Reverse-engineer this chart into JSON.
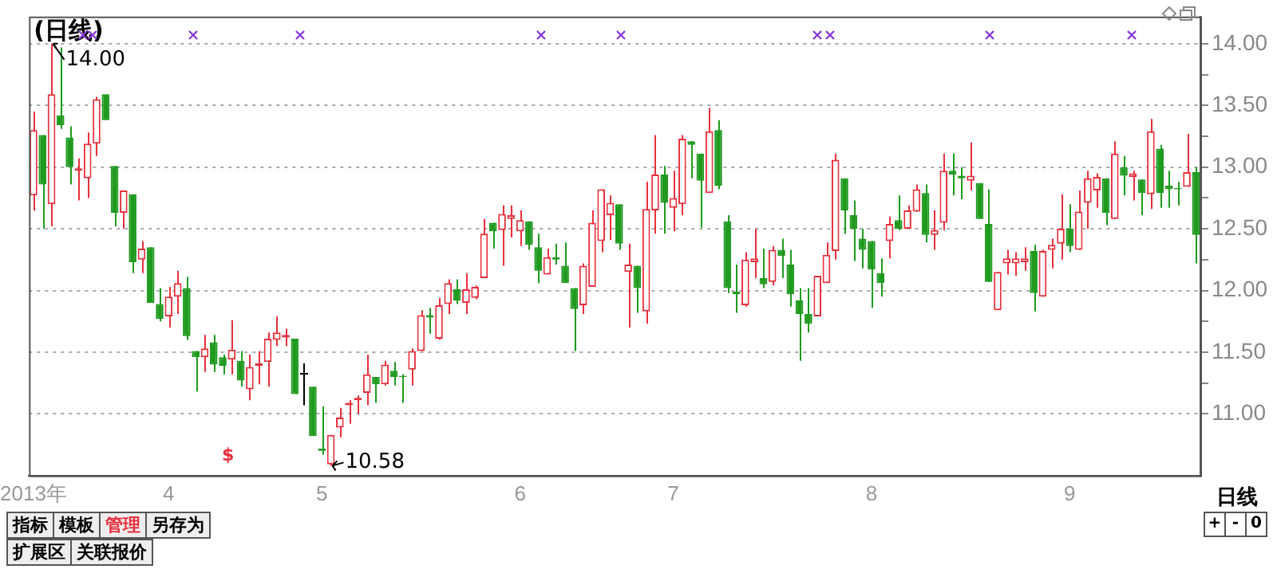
{
  "chart_data": {
    "type": "candlestick",
    "title": "(日线)",
    "categories": [
      "2013年",
      null,
      null,
      null,
      null,
      null,
      null,
      null,
      null,
      null,
      null,
      null,
      null,
      null,
      null,
      "4",
      null,
      null,
      null,
      null,
      null,
      null,
      null,
      null,
      null,
      null,
      null,
      null,
      null,
      null,
      null,
      null,
      "5",
      null,
      null,
      null,
      null,
      null,
      null,
      null,
      null,
      null,
      null,
      null,
      null,
      null,
      null,
      null,
      null,
      null,
      null,
      null,
      null,
      null,
      "6",
      null,
      null,
      null,
      null,
      null,
      null,
      null,
      null,
      null,
      null,
      null,
      null,
      null,
      null,
      null,
      null,
      "7",
      null,
      null,
      null,
      null,
      null,
      null,
      null,
      null,
      null,
      null,
      null,
      null,
      null,
      null,
      null,
      null,
      null,
      null,
      null,
      null,
      null,
      "8",
      null,
      null,
      null,
      null,
      null,
      null,
      null,
      null,
      null,
      null,
      null,
      null,
      null,
      null,
      null,
      null,
      null,
      null,
      null,
      null,
      null,
      "9",
      null,
      null,
      null,
      null,
      null,
      null,
      null,
      null,
      null,
      null,
      null,
      null,
      null,
      null
    ],
    "ohlc": [
      [
        12.77,
        13.45,
        12.65,
        13.3
      ],
      [
        13.26,
        13.26,
        12.5,
        12.86
      ],
      [
        12.7,
        14.0,
        12.52,
        13.59
      ],
      [
        13.42,
        13.97,
        13.31,
        13.34
      ],
      [
        13.24,
        13.33,
        12.86,
        13.0
      ],
      [
        12.97,
        13.07,
        12.73,
        12.99
      ],
      [
        12.91,
        13.28,
        12.75,
        13.19
      ],
      [
        13.19,
        13.57,
        13.09,
        13.55
      ],
      [
        13.59,
        13.59,
        13.38,
        13.38
      ],
      [
        13.01,
        13.01,
        12.52,
        12.63
      ],
      [
        12.63,
        12.81,
        12.5,
        12.81
      ],
      [
        12.78,
        12.78,
        12.14,
        12.23
      ],
      [
        12.25,
        12.4,
        12.14,
        12.34
      ],
      [
        12.35,
        12.35,
        11.9,
        11.9
      ],
      [
        11.89,
        12.02,
        11.75,
        11.77
      ],
      [
        11.79,
        12.03,
        11.7,
        11.95
      ],
      [
        11.95,
        12.16,
        11.81,
        12.06
      ],
      [
        12.02,
        12.11,
        11.6,
        11.63
      ],
      [
        11.51,
        11.51,
        11.18,
        11.46
      ],
      [
        11.46,
        11.64,
        11.34,
        11.53
      ],
      [
        11.58,
        11.64,
        11.34,
        11.4
      ],
      [
        11.46,
        11.48,
        11.32,
        11.39
      ],
      [
        11.44,
        11.76,
        11.32,
        11.52
      ],
      [
        11.43,
        11.51,
        11.22,
        11.27
      ],
      [
        11.2,
        11.48,
        11.11,
        11.38
      ],
      [
        11.39,
        11.51,
        11.24,
        11.41
      ],
      [
        11.42,
        11.66,
        11.22,
        11.61
      ],
      [
        11.6,
        11.79,
        11.55,
        11.66
      ],
      [
        11.62,
        11.69,
        11.55,
        11.64
      ],
      [
        11.61,
        11.61,
        11.16,
        11.16
      ],
      [
        11.33,
        11.41,
        11.07,
        11.33
      ],
      [
        11.22,
        11.22,
        10.82,
        10.82
      ],
      [
        10.72,
        11.06,
        10.67,
        10.7
      ],
      [
        10.59,
        10.83,
        10.58,
        10.83
      ],
      [
        10.89,
        11.05,
        10.81,
        10.97
      ],
      [
        11.07,
        11.11,
        10.92,
        11.09
      ],
      [
        11.11,
        11.15,
        11.0,
        11.13
      ],
      [
        11.17,
        11.48,
        11.07,
        11.32
      ],
      [
        11.3,
        11.3,
        11.09,
        11.24
      ],
      [
        11.24,
        11.43,
        11.23,
        11.4
      ],
      [
        11.35,
        11.42,
        11.23,
        11.3
      ],
      [
        11.31,
        11.32,
        11.09,
        11.3
      ],
      [
        11.36,
        11.53,
        11.23,
        11.51
      ],
      [
        11.51,
        11.84,
        11.51,
        11.8
      ],
      [
        11.8,
        11.86,
        11.65,
        11.78
      ],
      [
        11.61,
        11.94,
        11.6,
        11.88
      ],
      [
        11.89,
        12.09,
        11.81,
        12.06
      ],
      [
        12.01,
        12.09,
        11.89,
        11.92
      ],
      [
        11.9,
        12.14,
        11.81,
        12.01
      ],
      [
        11.94,
        12.04,
        11.93,
        12.03
      ],
      [
        12.1,
        12.58,
        12.1,
        12.46
      ],
      [
        12.55,
        12.55,
        12.34,
        12.48
      ],
      [
        12.49,
        12.69,
        12.2,
        12.62
      ],
      [
        12.58,
        12.69,
        12.43,
        12.61
      ],
      [
        12.48,
        12.65,
        12.36,
        12.57
      ],
      [
        12.56,
        12.56,
        12.33,
        12.37
      ],
      [
        12.35,
        12.46,
        12.06,
        12.16
      ],
      [
        12.13,
        12.34,
        12.13,
        12.27
      ],
      [
        12.27,
        12.38,
        12.21,
        12.25
      ],
      [
        12.2,
        12.39,
        12.06,
        12.06
      ],
      [
        12.02,
        12.02,
        11.51,
        11.85
      ],
      [
        11.88,
        12.22,
        11.81,
        12.2
      ],
      [
        12.03,
        12.65,
        12.03,
        12.55
      ],
      [
        12.4,
        12.82,
        12.31,
        12.82
      ],
      [
        12.61,
        12.77,
        12.41,
        12.71
      ],
      [
        12.7,
        12.7,
        12.33,
        12.38
      ],
      [
        12.15,
        12.38,
        11.7,
        12.21
      ],
      [
        12.2,
        12.2,
        11.82,
        12.02
      ],
      [
        11.83,
        12.88,
        11.73,
        12.66
      ],
      [
        12.65,
        13.26,
        12.46,
        12.94
      ],
      [
        12.94,
        13.01,
        12.46,
        12.71
      ],
      [
        12.67,
        12.97,
        12.48,
        12.75
      ],
      [
        12.7,
        13.26,
        12.61,
        13.23
      ],
      [
        13.21,
        13.21,
        12.91,
        13.18
      ],
      [
        13.11,
        13.11,
        12.51,
        12.89
      ],
      [
        12.79,
        13.48,
        12.79,
        13.29
      ],
      [
        13.3,
        13.38,
        12.82,
        12.85
      ],
      [
        12.56,
        12.61,
        11.98,
        12.02
      ],
      [
        11.99,
        12.21,
        11.82,
        11.97
      ],
      [
        11.88,
        12.31,
        11.87,
        12.25
      ],
      [
        12.23,
        12.5,
        12.1,
        12.26
      ],
      [
        12.1,
        12.34,
        12.02,
        12.05
      ],
      [
        12.07,
        12.36,
        12.04,
        12.33
      ],
      [
        12.33,
        12.42,
        12.1,
        12.28
      ],
      [
        12.21,
        12.33,
        11.87,
        11.97
      ],
      [
        11.92,
        12.02,
        11.43,
        11.81
      ],
      [
        11.81,
        12.02,
        11.66,
        11.73
      ],
      [
        11.79,
        12.12,
        11.79,
        12.12
      ],
      [
        12.06,
        12.39,
        12.06,
        12.29
      ],
      [
        12.32,
        13.11,
        12.25,
        13.06
      ],
      [
        12.91,
        12.91,
        12.46,
        12.65
      ],
      [
        12.61,
        12.73,
        12.24,
        12.5
      ],
      [
        12.42,
        12.5,
        12.18,
        12.33
      ],
      [
        12.4,
        12.4,
        11.86,
        12.17
      ],
      [
        12.14,
        12.26,
        11.95,
        12.06
      ],
      [
        12.4,
        12.6,
        12.26,
        12.54
      ],
      [
        12.57,
        12.77,
        12.49,
        12.5
      ],
      [
        12.5,
        12.69,
        12.5,
        12.65
      ],
      [
        12.64,
        12.86,
        12.64,
        12.82
      ],
      [
        12.79,
        12.86,
        12.39,
        12.45
      ],
      [
        12.45,
        12.65,
        12.33,
        12.49
      ],
      [
        12.55,
        13.11,
        12.49,
        12.97
      ],
      [
        12.97,
        13.11,
        12.77,
        12.94
      ],
      [
        12.93,
        13.0,
        12.74,
        12.91
      ],
      [
        12.89,
        13.2,
        12.81,
        12.93
      ],
      [
        12.87,
        12.87,
        12.58,
        12.58
      ],
      [
        12.54,
        12.82,
        12.07,
        12.07
      ],
      [
        11.84,
        12.15,
        11.84,
        12.15
      ],
      [
        12.22,
        12.33,
        12.13,
        12.26
      ],
      [
        12.22,
        12.31,
        12.12,
        12.26
      ],
      [
        12.23,
        12.35,
        12.16,
        12.26
      ],
      [
        12.32,
        12.37,
        11.83,
        11.98
      ],
      [
        11.95,
        12.33,
        11.95,
        12.32
      ],
      [
        12.33,
        12.42,
        12.18,
        12.37
      ],
      [
        12.38,
        12.78,
        12.25,
        12.5
      ],
      [
        12.5,
        12.7,
        12.31,
        12.36
      ],
      [
        12.33,
        12.81,
        12.33,
        12.64
      ],
      [
        12.71,
        12.97,
        12.5,
        12.91
      ],
      [
        12.81,
        12.95,
        12.67,
        12.92
      ],
      [
        12.91,
        12.91,
        12.53,
        12.63
      ],
      [
        12.58,
        13.21,
        12.58,
        13.11
      ],
      [
        13.0,
        13.09,
        12.77,
        12.93
      ],
      [
        12.92,
        12.97,
        12.73,
        12.95
      ],
      [
        12.9,
        12.9,
        12.61,
        12.79
      ],
      [
        12.78,
        13.39,
        12.66,
        13.29
      ],
      [
        13.15,
        13.18,
        12.67,
        12.79
      ],
      [
        12.85,
        12.97,
        12.67,
        12.82
      ],
      [
        12.83,
        12.88,
        12.69,
        12.82
      ],
      [
        12.84,
        13.27,
        12.84,
        12.96
      ],
      [
        12.96,
        13.0,
        12.22,
        12.45
      ]
    ],
    "colors": [
      "#e8303c",
      "#1f9a1f",
      "#e8303c",
      "#1f9a1f",
      "#1f9a1f",
      "#e8303c",
      "#e8303c",
      "#e8303c",
      "#1f9a1f",
      "#1f9a1f",
      "#e8303c",
      "#1f9a1f",
      "#e8303c",
      "#1f9a1f",
      "#1f9a1f",
      "#e8303c",
      "#e8303c",
      "#1f9a1f",
      "#1f9a1f",
      "#e8303c",
      "#1f9a1f",
      "#1f9a1f",
      "#e8303c",
      "#1f9a1f",
      "#e8303c",
      "#e8303c",
      "#e8303c",
      "#e8303c",
      "#e8303c",
      "#1f9a1f",
      "#000000",
      "#1f9a1f",
      "#1f9a1f",
      "#e8303c",
      "#e8303c",
      "#e8303c",
      "#e8303c",
      "#e8303c",
      "#1f9a1f",
      "#e8303c",
      "#1f9a1f",
      "#1f9a1f",
      "#e8303c",
      "#e8303c",
      "#1f9a1f",
      "#e8303c",
      "#e8303c",
      "#1f9a1f",
      "#e8303c",
      "#e8303c",
      "#e8303c",
      "#1f9a1f",
      "#e8303c",
      "#e8303c",
      "#e8303c",
      "#1f9a1f",
      "#1f9a1f",
      "#e8303c",
      "#1f9a1f",
      "#1f9a1f",
      "#1f9a1f",
      "#e8303c",
      "#e8303c",
      "#e8303c",
      "#e8303c",
      "#1f9a1f",
      "#e8303c",
      "#1f9a1f",
      "#e8303c",
      "#e8303c",
      "#1f9a1f",
      "#e8303c",
      "#e8303c",
      "#1f9a1f",
      "#1f9a1f",
      "#e8303c",
      "#1f9a1f",
      "#1f9a1f",
      "#1f9a1f",
      "#e8303c",
      "#e8303c",
      "#1f9a1f",
      "#e8303c",
      "#1f9a1f",
      "#1f9a1f",
      "#1f9a1f",
      "#1f9a1f",
      "#e8303c",
      "#e8303c",
      "#e8303c",
      "#1f9a1f",
      "#1f9a1f",
      "#1f9a1f",
      "#1f9a1f",
      "#1f9a1f",
      "#e8303c",
      "#1f9a1f",
      "#e8303c",
      "#e8303c",
      "#1f9a1f",
      "#e8303c",
      "#e8303c",
      "#1f9a1f",
      "#1f9a1f",
      "#e8303c",
      "#1f9a1f",
      "#1f9a1f",
      "#e8303c",
      "#e8303c",
      "#e8303c",
      "#e8303c",
      "#1f9a1f",
      "#e8303c",
      "#e8303c",
      "#e8303c",
      "#1f9a1f",
      "#e8303c",
      "#e8303c",
      "#e8303c",
      "#1f9a1f",
      "#e8303c",
      "#1f9a1f",
      "#e8303c",
      "#1f9a1f",
      "#e8303c",
      "#1f9a1f",
      "#1f9a1f",
      "#1f9a1f",
      "#e8303c",
      "#1f9a1f"
    ],
    "ylim": [
      10.5,
      14.22
    ],
    "yticks": [
      {
        "value": 11,
        "label": "11.00"
      },
      {
        "value": 11.25,
        "label": null
      },
      {
        "value": 11.5,
        "label": "11.50"
      },
      {
        "value": 11.75,
        "label": null
      },
      {
        "value": 12,
        "label": "12.00"
      },
      {
        "value": 12.25,
        "label": null
      },
      {
        "value": 12.5,
        "label": "12.50"
      },
      {
        "value": 12.75,
        "label": null
      },
      {
        "value": 13,
        "label": "13.00"
      },
      {
        "value": 13.25,
        "label": null
      },
      {
        "value": 13.5,
        "label": "13.50"
      },
      {
        "value": 13.75,
        "label": null
      },
      {
        "value": 14,
        "label": "14.00"
      }
    ],
    "grid": "y",
    "annotations": [
      "14.00",
      "10.58",
      "$",
      "指标",
      "模板",
      "管理",
      "另存为",
      "扩展区",
      "关联报价",
      "日线",
      "+",
      "-",
      "0"
    ]
  }
}
